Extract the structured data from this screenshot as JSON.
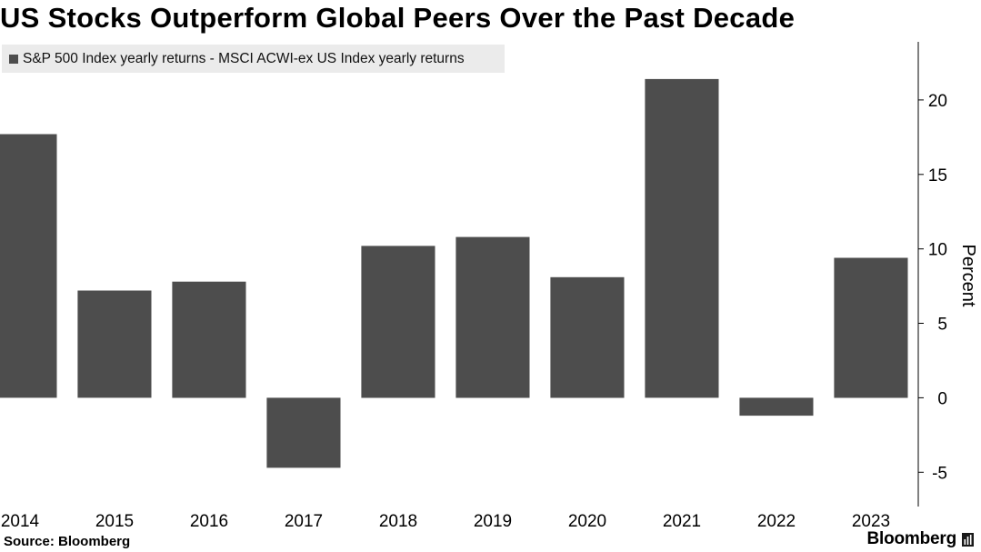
{
  "title": "US Stocks Outperform Global Peers Over the Past Decade",
  "legend": {
    "label": "S&P 500 Index yearly returns - MSCI ACWI-ex US Index yearly returns",
    "color": "#4d4d4d"
  },
  "chart_data": {
    "type": "bar",
    "categories": [
      "2014",
      "2015",
      "2016",
      "2017",
      "2018",
      "2019",
      "2020",
      "2021",
      "2022",
      "2023"
    ],
    "values": [
      17.7,
      7.2,
      7.8,
      -4.7,
      10.2,
      10.8,
      8.1,
      21.4,
      -1.2,
      9.4
    ],
    "series": [
      {
        "name": "S&P 500 Index yearly returns - MSCI ACWI-ex US Index yearly returns",
        "values": [
          17.7,
          7.2,
          7.8,
          -4.7,
          10.2,
          10.8,
          8.1,
          21.4,
          -1.2,
          9.4
        ]
      }
    ],
    "title": "US Stocks Outperform Global Peers Over the Past Decade",
    "xlabel": "",
    "ylabel": "Percent",
    "ylim": [
      -7.3,
      23.9
    ],
    "yticks": [
      "-5",
      "0",
      "5",
      "10",
      "15",
      "20"
    ],
    "ytick_values": [
      -5,
      0,
      5,
      10,
      15,
      20
    ],
    "y_axis_side": "right",
    "grid": false,
    "bar_color": "#4d4d4d"
  },
  "footer": {
    "source": "Source: Bloomberg",
    "brand": "Bloomberg"
  }
}
